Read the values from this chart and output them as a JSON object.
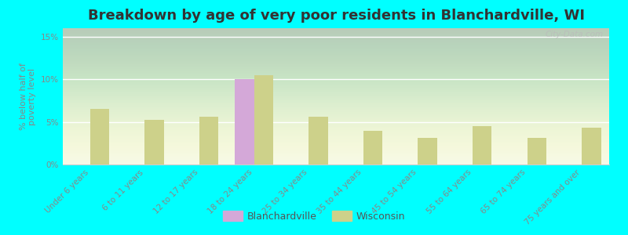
{
  "categories": [
    "Under 6 years",
    "6 to 11 years",
    "12 to 17 years",
    "18 to 24 years",
    "25 to 34 years",
    "35 to 44 years",
    "45 to 54 years",
    "55 to 64 years",
    "65 to 74 years",
    "75 years and over"
  ],
  "blanchardville": [
    0,
    0,
    0,
    10.0,
    0,
    0,
    0,
    0,
    0,
    0
  ],
  "wisconsin": [
    6.5,
    5.2,
    5.6,
    10.5,
    5.6,
    4.0,
    3.1,
    4.5,
    3.1,
    4.3
  ],
  "blanchardville_color": "#d4a8d8",
  "wisconsin_color": "#cdd18a",
  "title": "Breakdown by age of very poor residents in Blanchardville, WI",
  "ylabel": "% below half of\npoverty level",
  "ylim": [
    0,
    16
  ],
  "yticks": [
    0,
    5,
    10,
    15
  ],
  "ytick_labels": [
    "0%",
    "5%",
    "10%",
    "15%"
  ],
  "background_color": "#00ffff",
  "title_fontsize": 13,
  "axis_fontsize": 7.5,
  "bar_width": 0.35,
  "watermark": "City-Data.com"
}
